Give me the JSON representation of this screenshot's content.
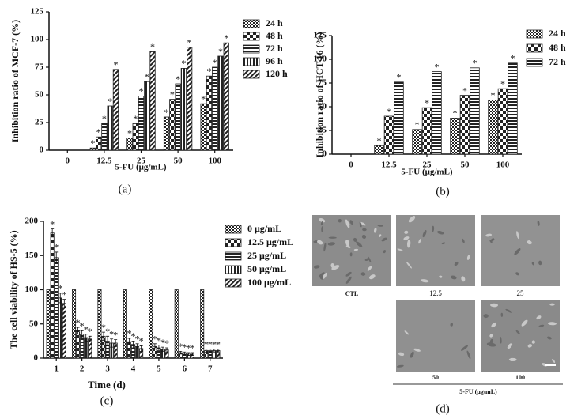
{
  "chart_data": [
    {
      "type": "bar",
      "panel_label": "(a)",
      "y_label": "Inhibition ratio of MCF-7 (%)",
      "x_label": "5-FU (μg/mL)",
      "categories": [
        "0",
        "12.5",
        "25",
        "50",
        "100"
      ],
      "ylim": [
        0,
        125
      ],
      "yticks": [
        0,
        25,
        50,
        75,
        100,
        125
      ],
      "significance_marker": "*",
      "series": [
        {
          "name": "24 h",
          "color": "#222222",
          "pattern": "dots",
          "values": [
            0,
            2,
            11,
            30,
            42
          ]
        },
        {
          "name": "48 h",
          "color": "#222222",
          "pattern": "checker",
          "values": [
            0,
            12,
            24,
            46,
            67
          ]
        },
        {
          "name": "72 h",
          "color": "#222222",
          "pattern": "hlines",
          "values": [
            0,
            24,
            49,
            60,
            75
          ]
        },
        {
          "name": "96 h",
          "color": "#222222",
          "pattern": "vlines",
          "values": [
            0,
            40,
            62,
            74,
            85
          ]
        },
        {
          "name": "120 h",
          "color": "#222222",
          "pattern": "diagonal",
          "values": [
            0,
            73,
            89,
            93,
            97
          ]
        }
      ]
    },
    {
      "type": "bar",
      "panel_label": "(b)",
      "y_label": "Inhibition ratio of HCT-16 (%)",
      "x_label": "5-FU (μg/mL)",
      "categories": [
        "0",
        "12.5",
        "25",
        "50",
        "100"
      ],
      "ylim": [
        0,
        125
      ],
      "yticks": [
        0,
        25,
        50,
        75,
        100,
        125
      ],
      "significance_marker": "*",
      "series": [
        {
          "name": "24 h",
          "color": "#222222",
          "pattern": "dots",
          "values": [
            0,
            9,
            26,
            38,
            57
          ]
        },
        {
          "name": "48 h",
          "color": "#222222",
          "pattern": "checker",
          "values": [
            0,
            40,
            49,
            62,
            69
          ]
        },
        {
          "name": "72 h",
          "color": "#222222",
          "pattern": "hlines",
          "values": [
            0,
            76,
            87,
            91,
            96
          ]
        }
      ]
    },
    {
      "type": "bar",
      "panel_label": "(c)",
      "y_label": "The cell viability of HS-5 (%)",
      "x_label": "Time (d)",
      "categories": [
        "1",
        "2",
        "3",
        "4",
        "5",
        "6",
        "7"
      ],
      "ylim": [
        0,
        200
      ],
      "yticks": [
        0,
        50,
        100,
        150,
        200
      ],
      "significance_marker": "*",
      "series": [
        {
          "name": "0 μg/mL",
          "color": "#222222",
          "pattern": "dots",
          "significant": false,
          "values": [
            100,
            100,
            100,
            100,
            100,
            100,
            100
          ],
          "errors": [
            0,
            0,
            0,
            0,
            0,
            0,
            0
          ]
        },
        {
          "name": "12.5 μg/mL",
          "color": "#222222",
          "pattern": "checker",
          "values": [
            183,
            40,
            32,
            24,
            17,
            8,
            11
          ],
          "errors": [
            6,
            5,
            6,
            5,
            4,
            2,
            2
          ]
        },
        {
          "name": "25 μg/mL",
          "color": "#222222",
          "pattern": "hlines",
          "values": [
            147,
            35,
            25,
            20,
            15,
            7,
            11
          ],
          "errors": [
            8,
            5,
            7,
            5,
            4,
            2,
            2
          ]
        },
        {
          "name": "50 μg/mL",
          "color": "#222222",
          "pattern": "vlines",
          "values": [
            88,
            30,
            22,
            17,
            13,
            6,
            11
          ],
          "errors": [
            7,
            5,
            6,
            4,
            3,
            2,
            2
          ]
        },
        {
          "name": "100 μg/mL",
          "color": "#222222",
          "pattern": "diagonal",
          "values": [
            80,
            28,
            22,
            14,
            12,
            6,
            11
          ],
          "errors": [
            6,
            4,
            5,
            4,
            3,
            2,
            2
          ]
        }
      ]
    }
  ],
  "image_panel": {
    "panel_label": "(d)",
    "x_label": "5-FU (μg/mL)",
    "labels": [
      "CTL",
      "12.5",
      "25",
      "50",
      "100"
    ]
  }
}
